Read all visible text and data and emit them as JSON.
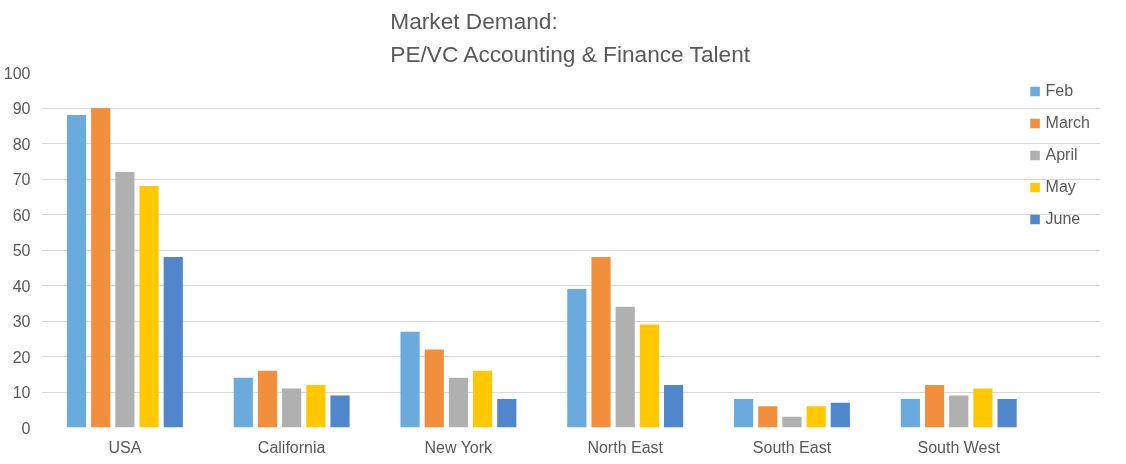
{
  "chart_data": {
    "type": "bar",
    "title": "Market Demand:\nPE/VC Accounting & Finance Talent",
    "categories": [
      "USA",
      "California",
      "New York",
      "North East",
      "South East",
      "South West"
    ],
    "series": [
      {
        "name": "Feb",
        "color": "#6aaadd",
        "values": [
          88,
          14,
          27,
          39,
          8,
          8
        ]
      },
      {
        "name": "March",
        "color": "#f28f3d",
        "values": [
          90,
          16,
          22,
          48,
          6,
          12
        ]
      },
      {
        "name": "April",
        "color": "#b0b0b0",
        "values": [
          72,
          11,
          14,
          34,
          3,
          9
        ]
      },
      {
        "name": "May",
        "color": "#ffc800",
        "values": [
          68,
          12,
          16,
          29,
          6,
          11
        ]
      },
      {
        "name": "June",
        "color": "#5086cc",
        "values": [
          48,
          9,
          8,
          12,
          7,
          8
        ]
      }
    ],
    "ylim": [
      0,
      100
    ],
    "yticks": [
      0,
      10,
      20,
      30,
      40,
      50,
      60,
      70,
      80,
      90,
      100
    ],
    "grid": "y",
    "legend": "top right"
  }
}
